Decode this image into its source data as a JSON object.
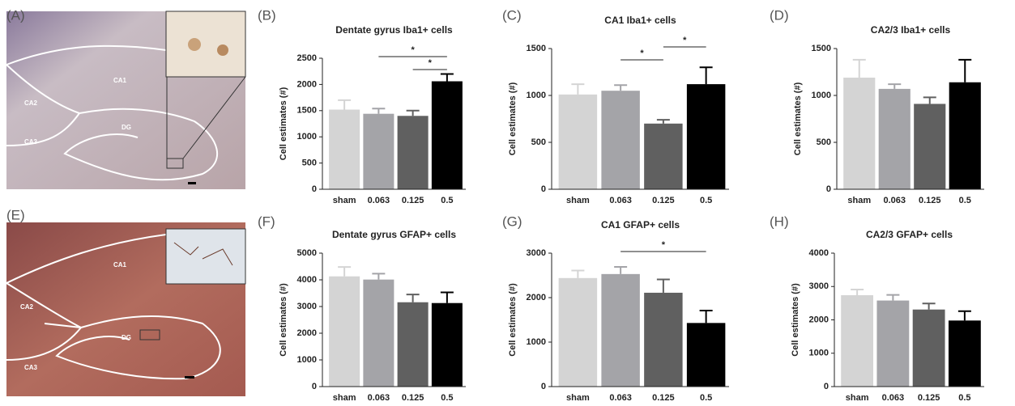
{
  "images": [
    {
      "label": "(A)",
      "regions": [
        "CA1",
        "CA2",
        "DG",
        "CA3"
      ]
    },
    {
      "label": "(E)",
      "regions": [
        "CA1",
        "CA2",
        "DG",
        "CA3"
      ]
    }
  ],
  "chart_data": [
    {
      "type": "bar",
      "label": "(B)",
      "title": "Dentate gyrus Iba1+ cells",
      "ylabel": "Cell estimates (#)",
      "categories": [
        "sham",
        "0.063",
        "0.125",
        "0.5"
      ],
      "values": [
        1520,
        1440,
        1400,
        2060
      ],
      "errors": [
        180,
        100,
        100,
        140
      ],
      "colors": [
        "#d4d4d4",
        "#a4a4a8",
        "#606060",
        "#000000"
      ],
      "ylim": [
        0,
        2500
      ],
      "yticks": [
        0,
        500,
        1000,
        1500,
        2000,
        2500
      ],
      "annotations": [
        {
          "text": "*",
          "between": [
            "0.063",
            "0.5"
          ]
        },
        {
          "text": "*",
          "between": [
            "0.125",
            "0.5"
          ]
        }
      ]
    },
    {
      "type": "bar",
      "label": "(C)",
      "title": "CA1 Iba1+ cells",
      "ylabel": "Cell estimates (#)",
      "categories": [
        "sham",
        "0.063",
        "0.125",
        "0.5"
      ],
      "values": [
        1010,
        1050,
        700,
        1120
      ],
      "errors": [
        110,
        60,
        40,
        180
      ],
      "colors": [
        "#d4d4d4",
        "#a4a4a8",
        "#606060",
        "#000000"
      ],
      "ylim": [
        0,
        1500
      ],
      "yticks": [
        0,
        500,
        1000,
        1500
      ],
      "annotations": [
        {
          "text": "*",
          "between": [
            "0.125",
            "0.5"
          ]
        },
        {
          "text": "*",
          "between": [
            "0.063",
            "0.125"
          ]
        }
      ]
    },
    {
      "type": "bar",
      "label": "(D)",
      "title": "CA2/3 Iba1+ cells",
      "ylabel": "Cell estimates (#)",
      "categories": [
        "sham",
        "0.063",
        "0.125",
        "0.5"
      ],
      "values": [
        1190,
        1070,
        910,
        1140
      ],
      "errors": [
        190,
        50,
        70,
        240
      ],
      "colors": [
        "#d4d4d4",
        "#a4a4a8",
        "#606060",
        "#000000"
      ],
      "ylim": [
        0,
        1500
      ],
      "yticks": [
        0,
        500,
        1000,
        1500
      ],
      "annotations": []
    },
    {
      "type": "bar",
      "label": "(F)",
      "title": "Dentate gyrus GFAP+ cells",
      "ylabel": "Cell estimates (#)",
      "categories": [
        "sham",
        "0.063",
        "0.125",
        "0.5"
      ],
      "values": [
        4130,
        4010,
        3160,
        3130
      ],
      "errors": [
        350,
        220,
        290,
        400
      ],
      "colors": [
        "#d4d4d4",
        "#a4a4a8",
        "#606060",
        "#000000"
      ],
      "ylim": [
        0,
        5000
      ],
      "yticks": [
        0,
        1000,
        2000,
        3000,
        4000,
        5000
      ],
      "annotations": []
    },
    {
      "type": "bar",
      "label": "(G)",
      "title": "CA1 GFAP+ cells",
      "ylabel": "Cell estimates (#)",
      "categories": [
        "sham",
        "0.063",
        "0.125",
        "0.5"
      ],
      "values": [
        2440,
        2530,
        2110,
        1430
      ],
      "errors": [
        170,
        160,
        300,
        280
      ],
      "colors": [
        "#d4d4d4",
        "#a4a4a8",
        "#606060",
        "#000000"
      ],
      "ylim": [
        0,
        3000
      ],
      "yticks": [
        0,
        1000,
        2000,
        3000
      ],
      "annotations": [
        {
          "text": "*",
          "between": [
            "0.063",
            "0.5"
          ]
        }
      ]
    },
    {
      "type": "bar",
      "label": "(H)",
      "title": "CA2/3 GFAP+ cells",
      "ylabel": "Cell estimates (#)",
      "categories": [
        "sham",
        "0.063",
        "0.125",
        "0.5"
      ],
      "values": [
        2740,
        2580,
        2310,
        1980
      ],
      "errors": [
        170,
        170,
        180,
        280
      ],
      "colors": [
        "#d4d4d4",
        "#a4a4a8",
        "#606060",
        "#000000"
      ],
      "ylim": [
        0,
        4000
      ],
      "yticks": [
        0,
        1000,
        2000,
        3000,
        4000
      ],
      "annotations": []
    }
  ]
}
